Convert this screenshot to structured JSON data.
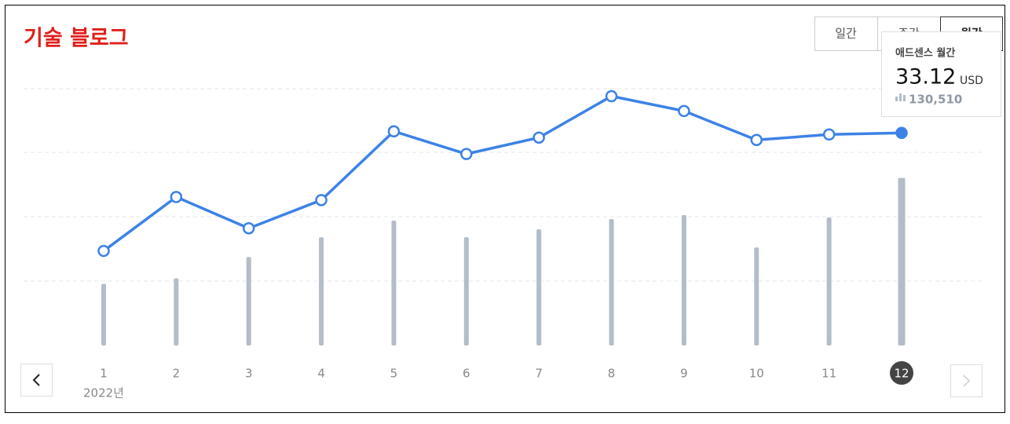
{
  "title": "기술 블로그",
  "tabs": [
    "일간",
    "주간",
    "월간"
  ],
  "chart_data": {
    "type": "line-bar",
    "categories": [
      "1",
      "2",
      "3",
      "4",
      "5",
      "6",
      "7",
      "8",
      "9",
      "10",
      "11",
      "12"
    ],
    "year_label": "2022년",
    "selected_index": 11,
    "series": [
      {
        "name": "애드센스 월간",
        "type": "line",
        "color": "#3d82e6",
        "values": [
          14.73,
          23.13,
          18.26,
          22.65,
          33.36,
          29.83,
          32.39,
          38.84,
          36.53,
          32.02,
          32.87,
          33.12
        ]
      },
      {
        "type": "bar",
        "axis": "y2",
        "color": "#b3bdc8",
        "values": [
          48020,
          52330,
          68950,
          84340,
          97270,
          84340,
          90500,
          98500,
          101580,
          76340,
          99730,
          130510
        ],
        "value_labels": [
          null,
          null,
          null,
          null,
          null,
          null,
          null,
          null,
          null,
          null,
          null,
          "130,510"
        ]
      }
    ],
    "ylim": [
      0,
      40
    ],
    "y2lim": [
      0,
      200000
    ],
    "tooltip_unit": "USD"
  }
}
